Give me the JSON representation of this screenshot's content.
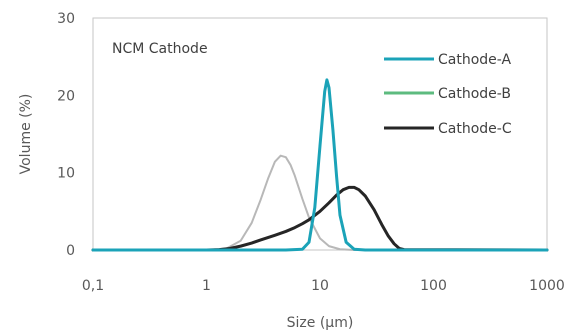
{
  "chart_data": {
    "type": "line",
    "title": "",
    "annotation": "NCM Cathode",
    "xlabel": "Size (µm)",
    "ylabel": "Volume (%)",
    "xscale": "log",
    "xlim": [
      0.1,
      1000
    ],
    "ylim": [
      0,
      30
    ],
    "xticks": [
      0.1,
      1,
      10,
      100,
      1000
    ],
    "xtick_labels": [
      "0,1",
      "1",
      "10",
      "100",
      "1000"
    ],
    "yticks": [
      0,
      10,
      20,
      30
    ],
    "ytick_labels": [
      "0",
      "10",
      "20",
      "30"
    ],
    "grid": false,
    "legend_position": "top-right",
    "series": [
      {
        "name": "Cathode-A",
        "color": "#1BA3B8",
        "x": [
          0.1,
          1,
          5,
          7,
          8,
          9,
          10,
          11,
          11.5,
          12,
          13,
          14,
          15,
          17,
          20,
          25,
          1000
        ],
        "y": [
          0,
          0,
          0,
          0.1,
          1.0,
          5.5,
          13.5,
          20.5,
          22.0,
          21.0,
          15.5,
          9.5,
          4.5,
          1.0,
          0.1,
          0,
          0
        ]
      },
      {
        "name": "Cathode-B",
        "color": "#5DBB7F",
        "x": [],
        "y": []
      },
      {
        "name": "",
        "color": "#B8B8B8",
        "x": [
          0.1,
          1,
          1.5,
          2,
          2.5,
          3,
          3.5,
          4,
          4.5,
          5,
          5.5,
          6,
          7,
          8,
          10,
          12,
          15,
          20,
          25,
          1000
        ],
        "y": [
          0,
          0,
          0.2,
          1.2,
          3.5,
          6.5,
          9.3,
          11.4,
          12.2,
          12.0,
          11.0,
          9.6,
          6.6,
          4.2,
          1.5,
          0.5,
          0.1,
          0,
          0,
          0
        ]
      },
      {
        "name": "Cathode-C",
        "color": "#262626",
        "x": [
          0.1,
          1,
          1.3,
          1.6,
          2,
          2.5,
          3,
          4,
          5,
          6,
          7,
          8,
          10,
          12,
          14,
          16,
          18,
          20,
          22,
          25,
          30,
          35,
          40,
          45,
          50,
          55,
          1000
        ],
        "y": [
          0,
          0,
          0.05,
          0.2,
          0.5,
          0.9,
          1.3,
          1.9,
          2.4,
          2.9,
          3.4,
          3.9,
          5.0,
          6.1,
          7.1,
          7.8,
          8.1,
          8.1,
          7.8,
          7.0,
          5.2,
          3.3,
          1.8,
          0.8,
          0.2,
          0.05,
          0
        ]
      }
    ]
  }
}
